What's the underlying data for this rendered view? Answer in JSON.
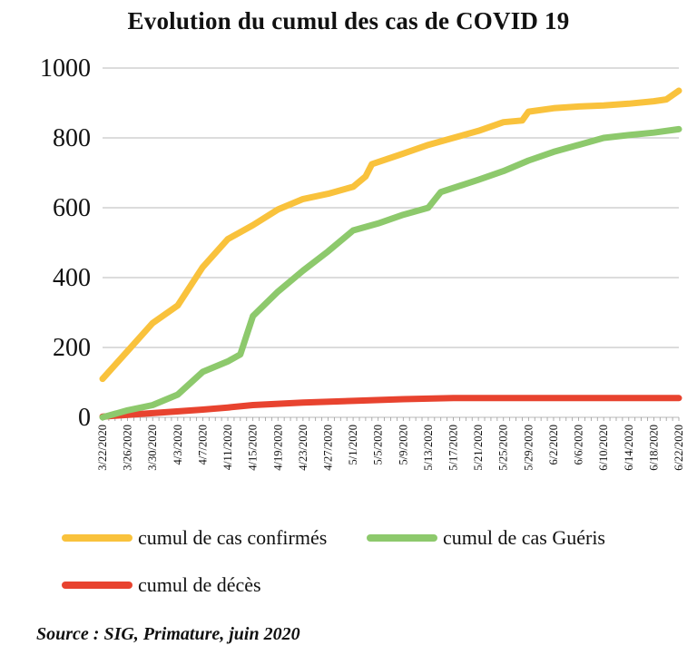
{
  "chart_data": {
    "type": "line",
    "title": "Evolution du cumul des cas de COVID 19",
    "xlabel": "",
    "ylabel": "",
    "ylim": [
      0,
      1000
    ],
    "yticks": [
      0,
      200,
      400,
      600,
      800,
      1000
    ],
    "grid": true,
    "legend_position": "bottom",
    "x_start": "3/22/2020",
    "x_tick_labels": [
      "3/22/2020",
      "3/26/2020",
      "3/30/2020",
      "4/3/2020",
      "4/7/2020",
      "4/11/2020",
      "4/15/2020",
      "4/19/2020",
      "4/23/2020",
      "4/27/2020",
      "5/1/2020",
      "5/5/2020",
      "5/9/2020",
      "5/13/2020",
      "5/17/2020",
      "5/21/2020",
      "5/25/2020",
      "5/29/2020",
      "6/2/2020",
      "6/6/2020",
      "6/10/2020",
      "6/14/2020",
      "6/18/2020",
      "6/22/2020"
    ],
    "series": [
      {
        "name": "cumul de cas confirmés",
        "color": "#f9c23c",
        "points": [
          [
            "3/22/2020",
            110
          ],
          [
            "3/26/2020",
            190
          ],
          [
            "3/30/2020",
            270
          ],
          [
            "4/3/2020",
            320
          ],
          [
            "4/7/2020",
            430
          ],
          [
            "4/11/2020",
            510
          ],
          [
            "4/15/2020",
            550
          ],
          [
            "4/19/2020",
            595
          ],
          [
            "4/23/2020",
            625
          ],
          [
            "4/27/2020",
            640
          ],
          [
            "5/1/2020",
            660
          ],
          [
            "5/3/2020",
            690
          ],
          [
            "5/4/2020",
            725
          ],
          [
            "5/9/2020",
            755
          ],
          [
            "5/13/2020",
            780
          ],
          [
            "5/17/2020",
            800
          ],
          [
            "5/21/2020",
            820
          ],
          [
            "5/25/2020",
            845
          ],
          [
            "5/28/2020",
            850
          ],
          [
            "5/29/2020",
            875
          ],
          [
            "6/2/2020",
            885
          ],
          [
            "6/6/2020",
            890
          ],
          [
            "6/10/2020",
            893
          ],
          [
            "6/14/2020",
            898
          ],
          [
            "6/18/2020",
            905
          ],
          [
            "6/20/2020",
            910
          ],
          [
            "6/22/2020",
            935
          ]
        ]
      },
      {
        "name": "cumul de cas Guéris",
        "color": "#8dc96c",
        "points": [
          [
            "3/22/2020",
            0
          ],
          [
            "3/26/2020",
            20
          ],
          [
            "3/30/2020",
            35
          ],
          [
            "4/3/2020",
            65
          ],
          [
            "4/7/2020",
            130
          ],
          [
            "4/11/2020",
            160
          ],
          [
            "4/13/2020",
            180
          ],
          [
            "4/15/2020",
            290
          ],
          [
            "4/19/2020",
            360
          ],
          [
            "4/23/2020",
            420
          ],
          [
            "4/27/2020",
            475
          ],
          [
            "5/1/2020",
            535
          ],
          [
            "5/5/2020",
            555
          ],
          [
            "5/9/2020",
            580
          ],
          [
            "5/13/2020",
            600
          ],
          [
            "5/15/2020",
            645
          ],
          [
            "5/21/2020",
            680
          ],
          [
            "5/25/2020",
            705
          ],
          [
            "5/29/2020",
            735
          ],
          [
            "6/2/2020",
            760
          ],
          [
            "6/6/2020",
            780
          ],
          [
            "6/10/2020",
            800
          ],
          [
            "6/14/2020",
            808
          ],
          [
            "6/18/2020",
            815
          ],
          [
            "6/22/2020",
            825
          ]
        ]
      },
      {
        "name": "cumul de décès",
        "color": "#e8432f",
        "points": [
          [
            "3/22/2020",
            2
          ],
          [
            "3/30/2020",
            12
          ],
          [
            "4/7/2020",
            22
          ],
          [
            "4/11/2020",
            28
          ],
          [
            "4/15/2020",
            35
          ],
          [
            "4/23/2020",
            42
          ],
          [
            "5/1/2020",
            47
          ],
          [
            "5/9/2020",
            52
          ],
          [
            "5/17/2020",
            55
          ],
          [
            "6/22/2020",
            55
          ]
        ]
      }
    ]
  },
  "source_text": "Source : SIG, Primature, juin 2020"
}
